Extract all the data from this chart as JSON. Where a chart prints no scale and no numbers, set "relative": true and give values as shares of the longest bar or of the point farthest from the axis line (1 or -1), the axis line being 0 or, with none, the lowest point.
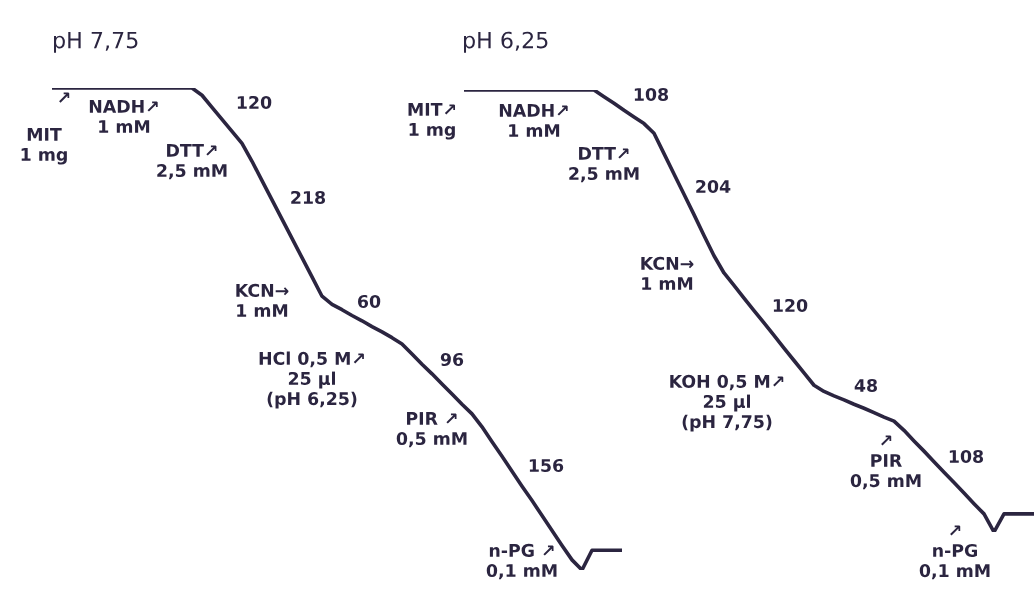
{
  "chart_data": [
    {
      "type": "line",
      "title": "pH 7,75",
      "relative": true,
      "color": "#2b2540",
      "categories": [
        null,
        null,
        null,
        null,
        null,
        null,
        null,
        null,
        null,
        null,
        null,
        null,
        null,
        null,
        null,
        null,
        null,
        null,
        null,
        null,
        null,
        null,
        null,
        null,
        null,
        null,
        null,
        null,
        null,
        null,
        null,
        null,
        null,
        null,
        null,
        null,
        null,
        null,
        null,
        null,
        null,
        null,
        null,
        null,
        null,
        null,
        null,
        null,
        null,
        null,
        null,
        null,
        null,
        null,
        null,
        null,
        null,
        null
      ],
      "values": [
        1,
        1,
        1,
        1,
        1,
        1,
        1,
        1,
        1,
        1,
        1,
        1,
        1,
        1,
        1,
        0.985,
        0.96,
        0.935,
        0.91,
        0.885,
        0.848,
        0.808,
        0.768,
        0.728,
        0.688,
        0.648,
        0.608,
        0.568,
        0.551,
        0.54,
        0.528,
        0.517,
        0.505,
        0.494,
        0.482,
        0.469,
        0.448,
        0.427,
        0.407,
        0.386,
        0.365,
        0.344,
        0.324,
        0.297,
        0.266,
        0.236,
        0.205,
        0.174,
        0.144,
        0.113,
        0.082,
        0.051,
        0.021,
        0,
        0.041,
        0.041,
        0.041,
        0.041
      ],
      "annotations": [
        "↗",
        "NADH↗\n1 mM",
        "MIT\n1 mg",
        "DTT↗\n2,5 mM",
        "120",
        "218",
        "KCN→\n1 mM",
        "60",
        "HCl 0,5 M↗\n25 µl\n(pH 6,25)",
        "96",
        "PIR ↗\n0,5 mM",
        "156",
        "n-PG ↗\n0,1 mM"
      ]
    },
    {
      "type": "line",
      "title": "pH 6,25",
      "relative": true,
      "color": "#2b2540",
      "categories": [
        null,
        null,
        null,
        null,
        null,
        null,
        null,
        null,
        null,
        null,
        null,
        null,
        null,
        null,
        null,
        null,
        null,
        null,
        null,
        null,
        null,
        null,
        null,
        null,
        null,
        null,
        null,
        null,
        null,
        null,
        null,
        null,
        null,
        null,
        null,
        null,
        null,
        null,
        null,
        null,
        null,
        null,
        null,
        null,
        null,
        null,
        null,
        null,
        null,
        null,
        null,
        null,
        null,
        null,
        null,
        null,
        null,
        null
      ],
      "values": [
        1,
        1,
        1,
        1,
        1,
        1,
        1,
        1,
        1,
        1,
        1,
        1,
        1,
        1,
        0.985,
        0.97,
        0.954,
        0.939,
        0.924,
        0.902,
        0.856,
        0.81,
        0.764,
        0.718,
        0.671,
        0.625,
        0.586,
        0.558,
        0.529,
        0.501,
        0.473,
        0.445,
        0.416,
        0.388,
        0.36,
        0.332,
        0.318,
        0.308,
        0.299,
        0.289,
        0.28,
        0.27,
        0.26,
        0.251,
        0.23,
        0.206,
        0.183,
        0.159,
        0.135,
        0.112,
        0.088,
        0.064,
        0.041,
        0,
        0.041,
        0.041,
        0.041,
        0.041
      ],
      "annotations": [
        "MIT↗\n1 mg",
        "NADH↗\n1 mM",
        "DTT↗\n2,5 mM",
        "108",
        "204",
        "KCN→\n1 mM",
        "120",
        "KOH 0,5 M↗\n25 µl\n(pH 7,75)",
        "48",
        "↗\nPIR\n0,5 mM",
        "108",
        "↗\nn-PG\n0,1 mM"
      ]
    }
  ]
}
